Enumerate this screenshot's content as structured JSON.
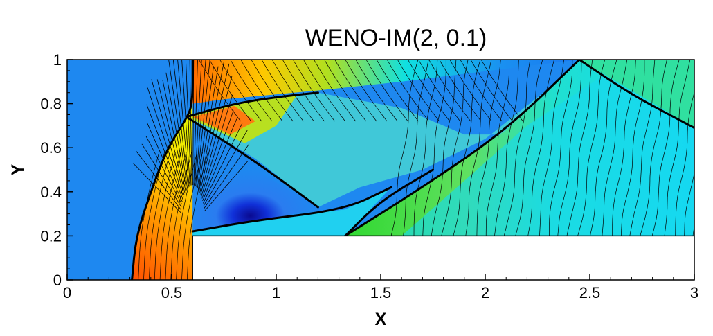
{
  "chart_data": {
    "type": "heatmap",
    "title": "WENO-IM(2, 0.1)",
    "xlabel": "X",
    "ylabel": "Y",
    "xlim": [
      0,
      3
    ],
    "ylim": [
      0,
      1
    ],
    "x_ticks": [
      0,
      0.5,
      1,
      1.5,
      2,
      2.5,
      3
    ],
    "x_tick_labels": [
      "0",
      "0.5",
      "1",
      "1.5",
      "2",
      "2.5",
      "3"
    ],
    "y_ticks": [
      0,
      0.2,
      0.4,
      0.6,
      0.8,
      1
    ],
    "y_tick_labels": [
      "0",
      "0.2",
      "0.4",
      "0.6",
      "0.8",
      "1"
    ],
    "step": {
      "x_start": 0.6,
      "x_end": 3,
      "y_top": 0.2
    },
    "grid": false,
    "legend": "none",
    "colors": {
      "freestream": "#1e88f0",
      "hot": "#ff5a00",
      "warm": "#ffb000",
      "mid": "#c8e010",
      "green": "#28d830",
      "cyan": "#10e0f0",
      "blue": "#1860f0",
      "deep_blue": "#1010c0",
      "contour": "#000000"
    },
    "shocks": [
      {
        "name": "bow-shock",
        "points": [
          [
            0.31,
            0
          ],
          [
            0.33,
            0.2
          ],
          [
            0.4,
            0.4
          ],
          [
            0.48,
            0.6
          ],
          [
            0.57,
            0.73
          ],
          [
            0.6,
            0.8
          ],
          [
            0.6,
            1
          ]
        ]
      },
      {
        "name": "mach-stem-reflection",
        "points": [
          [
            0.57,
            0.74
          ],
          [
            0.8,
            0.8
          ],
          [
            1.0,
            0.83
          ],
          [
            1.2,
            0.85
          ]
        ]
      },
      {
        "name": "expansion-shock",
        "points": [
          [
            0.57,
            0.74
          ],
          [
            0.8,
            0.6
          ],
          [
            1.0,
            0.47
          ],
          [
            1.2,
            0.33
          ]
        ]
      },
      {
        "name": "reflected-shock-upper",
        "points": [
          [
            1.33,
            0.2
          ],
          [
            1.7,
            0.42
          ],
          [
            2.1,
            0.68
          ],
          [
            2.45,
            1
          ]
        ]
      },
      {
        "name": "reflected-shock-lower",
        "points": [
          [
            1.33,
            0.2
          ],
          [
            1.5,
            0.36
          ],
          [
            1.75,
            0.5
          ]
        ]
      },
      {
        "name": "contact-line",
        "points": [
          [
            0.6,
            0.22
          ],
          [
            0.9,
            0.27
          ],
          [
            1.33,
            0.32
          ],
          [
            1.55,
            0.42
          ]
        ]
      },
      {
        "name": "top-reflected",
        "points": [
          [
            2.45,
            1
          ],
          [
            2.7,
            0.84
          ],
          [
            3.0,
            0.69
          ]
        ]
      }
    ]
  }
}
